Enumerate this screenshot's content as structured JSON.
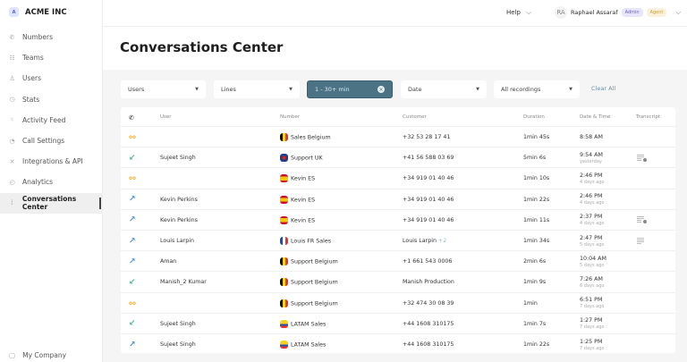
{
  "brand": {
    "name": "ACME INC",
    "logo_letter": "A"
  },
  "sidebar": {
    "items": [
      {
        "label": "Numbers",
        "icon": "phone-icon"
      },
      {
        "label": "Teams",
        "icon": "team-icon"
      },
      {
        "label": "Users",
        "icon": "user-icon"
      },
      {
        "label": "Stats",
        "icon": "clock-icon"
      },
      {
        "label": "Activity Feed",
        "icon": "mic-icon"
      },
      {
        "label": "Call Settings",
        "icon": "settings-icon"
      },
      {
        "label": "Integrations & API",
        "icon": "integrations-icon"
      },
      {
        "label": "Analytics",
        "icon": "analytics-icon"
      },
      {
        "label": "Conversations Center",
        "icon": "waveform-icon",
        "active": true
      }
    ],
    "footer": "My Company"
  },
  "topbar": {
    "help": "Help",
    "avatar_initials": "RA",
    "user_name": "Raphael Assaraf",
    "badges": [
      "Admin",
      "Agent"
    ]
  },
  "page_title": "Conversations Center",
  "filters": {
    "users": "Users",
    "lines": "Lines",
    "duration": "1 - 30+ min",
    "date": "Date",
    "recordings": "All recordings",
    "clear": "Clear All"
  },
  "table": {
    "headers": {
      "user": "User",
      "number": "Number",
      "customer": "Customer",
      "duration": "Duration",
      "datetime": "Date & Time",
      "transcript": "Transcript"
    },
    "rows": [
      {
        "type": "voicemail",
        "user": "",
        "flag": "be",
        "number": "Sales Belgium",
        "customer": "+32 53 28 17 41",
        "duration": "1min 45s",
        "time": "8:58 AM",
        "ago": "",
        "transcript": ""
      },
      {
        "type": "incoming",
        "user": "Sujeet Singh",
        "flag": "uk",
        "number": "Support UK",
        "customer": "+41 56 588 03 69",
        "duration": "5min 6s",
        "time": "9:54 AM",
        "ago": "yesterday",
        "transcript": "ai"
      },
      {
        "type": "voicemail",
        "user": "",
        "flag": "es",
        "number": "Kevin ES",
        "customer": "+34 919 01 40 46",
        "duration": "1min 10s",
        "time": "2:46 PM",
        "ago": "4 days ago",
        "transcript": ""
      },
      {
        "type": "outgoing",
        "user": "Kevin Perkins",
        "flag": "es",
        "number": "Kevin ES",
        "customer": "+34 919 01 40 46",
        "duration": "1min 22s",
        "time": "2:46 PM",
        "ago": "4 days ago",
        "transcript": ""
      },
      {
        "type": "outgoing",
        "user": "Kevin Perkins",
        "flag": "es",
        "number": "Kevin ES",
        "customer": "+34 919 01 40 46",
        "duration": "1min 11s",
        "time": "2:37 PM",
        "ago": "4 days ago",
        "transcript": "ai"
      },
      {
        "type": "outgoing",
        "user": "Louis Larpin",
        "flag": "fr",
        "number": "Louis FR Sales",
        "customer": "Louis Larpin",
        "customer_extra": "+2",
        "duration": "1min 34s",
        "time": "2:47 PM",
        "ago": "5 days ago",
        "transcript": "text"
      },
      {
        "type": "outgoing",
        "user": "Aman",
        "flag": "be",
        "number": "Support Belgium",
        "customer": "+1 661 543 0006",
        "duration": "2min 6s",
        "time": "10:04 AM",
        "ago": "5 days ago",
        "transcript": ""
      },
      {
        "type": "incoming",
        "user": "Manish_2 Kumar",
        "flag": "be",
        "number": "Support Belgium",
        "customer": "Manish Production",
        "duration": "1min 9s",
        "time": "7:26 AM",
        "ago": "6 days ago",
        "transcript": ""
      },
      {
        "type": "voicemail",
        "user": "",
        "flag": "be",
        "number": "Support Belgium",
        "customer": "+32 474 30 08 39",
        "duration": "1min",
        "time": "6:51 PM",
        "ago": "7 days ago",
        "transcript": ""
      },
      {
        "type": "incoming",
        "user": "Sujeet Singh",
        "flag": "co",
        "number": "LATAM Sales",
        "customer": "+44 1608 310175",
        "duration": "1min 7s",
        "time": "1:27 PM",
        "ago": "7 days ago",
        "transcript": ""
      },
      {
        "type": "outgoing",
        "user": "Sujeet Singh",
        "flag": "co",
        "number": "LATAM Sales",
        "customer": "+44 1608 310175",
        "duration": "1min 22s",
        "time": "1:25 PM",
        "ago": "7 days ago",
        "transcript": ""
      }
    ]
  },
  "colors": {
    "accent": "#4c7383",
    "incoming": "#3cbf8c",
    "outgoing": "#4a8fe8",
    "voicemail": "#f2b23a"
  }
}
